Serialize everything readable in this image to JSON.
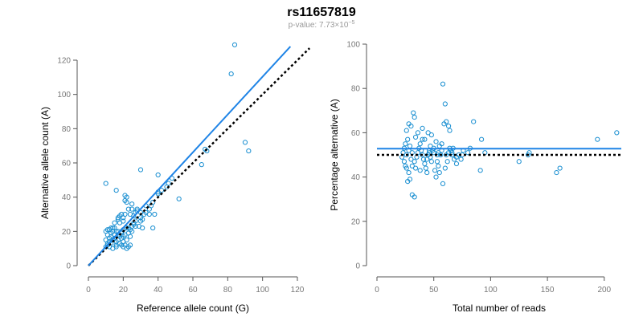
{
  "figure": {
    "title": "rs11657819",
    "subtitle_prefix": "p-value: 7.73×10",
    "subtitle_exponent": "−5"
  },
  "colors": {
    "point": "#1a8fd1",
    "fit_line": "#1f84e6",
    "reference_line": "#000000"
  },
  "chart_data": [
    {
      "type": "scatter",
      "title": "",
      "xlabel": "Reference allele count (G)",
      "ylabel": "Alternative allele count (A)",
      "xlim": [
        0,
        120
      ],
      "ylim": [
        0,
        120
      ],
      "xticks": [
        0,
        20,
        40,
        60,
        80,
        100,
        120
      ],
      "yticks": [
        0,
        20,
        40,
        60,
        80,
        100,
        120
      ],
      "points": [
        [
          10,
          48
        ],
        [
          16,
          44
        ],
        [
          30,
          56
        ],
        [
          40,
          53
        ],
        [
          48,
          51
        ],
        [
          52,
          39
        ],
        [
          37,
          37
        ],
        [
          37,
          22
        ],
        [
          28,
          32
        ],
        [
          33,
          35
        ],
        [
          36,
          35
        ],
        [
          40,
          42
        ],
        [
          42,
          44
        ],
        [
          45,
          46
        ],
        [
          46,
          48
        ],
        [
          65,
          59
        ],
        [
          67,
          68
        ],
        [
          68,
          67
        ],
        [
          82,
          112
        ],
        [
          84,
          129
        ],
        [
          90,
          72
        ],
        [
          92,
          67
        ],
        [
          38,
          30
        ],
        [
          30,
          26
        ],
        [
          31,
          22
        ],
        [
          24,
          30
        ],
        [
          25,
          33
        ],
        [
          25,
          36
        ],
        [
          27,
          31
        ],
        [
          27,
          23
        ],
        [
          25,
          20
        ],
        [
          21,
          41
        ],
        [
          21,
          38
        ],
        [
          22,
          40
        ],
        [
          22,
          37
        ],
        [
          23,
          33
        ],
        [
          20,
          26
        ],
        [
          18,
          25
        ],
        [
          17,
          27
        ],
        [
          17,
          28
        ],
        [
          18,
          29
        ],
        [
          19,
          30
        ],
        [
          20,
          28
        ],
        [
          21,
          30
        ],
        [
          15,
          22
        ],
        [
          16,
          20
        ],
        [
          15,
          18
        ],
        [
          13,
          17
        ],
        [
          12,
          16
        ],
        [
          11,
          18
        ],
        [
          10,
          20
        ],
        [
          11,
          21
        ],
        [
          13,
          22
        ],
        [
          14,
          20
        ],
        [
          10,
          15
        ],
        [
          12,
          14
        ],
        [
          11,
          12
        ],
        [
          13,
          13
        ],
        [
          14,
          15
        ],
        [
          15,
          16
        ],
        [
          16,
          14
        ],
        [
          16,
          12
        ],
        [
          17,
          15
        ],
        [
          18,
          17
        ],
        [
          17,
          18
        ],
        [
          19,
          19
        ],
        [
          19,
          20
        ],
        [
          20,
          21
        ],
        [
          22,
          22
        ],
        [
          23,
          22
        ],
        [
          21,
          18
        ],
        [
          20,
          14
        ],
        [
          18,
          13
        ],
        [
          19,
          12
        ],
        [
          21,
          12
        ],
        [
          20,
          11
        ],
        [
          19,
          16
        ],
        [
          22,
          15
        ],
        [
          23,
          19
        ],
        [
          24,
          21
        ],
        [
          25,
          23
        ],
        [
          26,
          25
        ],
        [
          29,
          23
        ],
        [
          30,
          28
        ],
        [
          32,
          30
        ],
        [
          33,
          31
        ],
        [
          35,
          33
        ],
        [
          26,
          29
        ],
        [
          28,
          33
        ],
        [
          23,
          11
        ],
        [
          22,
          10
        ],
        [
          24,
          12
        ],
        [
          14,
          10
        ],
        [
          12,
          11
        ],
        [
          26,
          24
        ],
        [
          27,
          26
        ],
        [
          30,
          31
        ],
        [
          31,
          27
        ],
        [
          35,
          30
        ],
        [
          40,
          43
        ],
        [
          14,
          22
        ],
        [
          15,
          25
        ],
        [
          17,
          20
        ],
        [
          13,
          19
        ],
        [
          12,
          21
        ],
        [
          11,
          13
        ],
        [
          10,
          11
        ],
        [
          16,
          11
        ],
        [
          20,
          17
        ],
        [
          24,
          17
        ]
      ],
      "fit_line": {
        "from": [
          0,
          0
        ],
        "to": [
          116,
          128
        ]
      },
      "reference_line": {
        "from": [
          0,
          0
        ],
        "to": [
          127,
          127
        ]
      }
    },
    {
      "type": "scatter",
      "title": "",
      "xlabel": "Total number of reads",
      "ylabel": "Percentage alternative (A)",
      "xlim": [
        0,
        215
      ],
      "ylim": [
        0,
        100
      ],
      "xticks": [
        0,
        50,
        100,
        150,
        200
      ],
      "yticks": [
        0,
        20,
        40,
        60,
        80,
        100
      ],
      "points": [
        [
          58,
          82
        ],
        [
          60,
          73
        ],
        [
          32,
          69
        ],
        [
          33,
          67
        ],
        [
          28,
          64
        ],
        [
          30,
          63
        ],
        [
          26,
          61
        ],
        [
          34,
          58
        ],
        [
          36,
          60
        ],
        [
          40,
          62
        ],
        [
          42,
          57
        ],
        [
          45,
          60
        ],
        [
          48,
          59
        ],
        [
          52,
          56
        ],
        [
          55,
          54
        ],
        [
          57,
          55
        ],
        [
          59,
          64
        ],
        [
          61,
          65
        ],
        [
          63,
          63
        ],
        [
          64,
          61
        ],
        [
          85,
          65
        ],
        [
          92,
          57
        ],
        [
          95,
          51
        ],
        [
          31,
          32
        ],
        [
          33,
          31
        ],
        [
          27,
          38
        ],
        [
          29,
          39
        ],
        [
          25,
          45
        ],
        [
          24,
          47
        ],
        [
          26,
          50
        ],
        [
          28,
          52
        ],
        [
          30,
          48
        ],
        [
          31,
          45
        ],
        [
          33,
          47
        ],
        [
          35,
          49
        ],
        [
          36,
          51
        ],
        [
          37,
          53
        ],
        [
          38,
          55
        ],
        [
          39,
          52
        ],
        [
          40,
          50
        ],
        [
          41,
          48
        ],
        [
          42,
          46
        ],
        [
          43,
          44
        ],
        [
          44,
          42
        ],
        [
          45,
          50
        ],
        [
          46,
          52
        ],
        [
          47,
          54
        ],
        [
          48,
          47
        ],
        [
          50,
          51
        ],
        [
          51,
          43
        ],
        [
          52,
          40
        ],
        [
          53,
          47
        ],
        [
          54,
          45
        ],
        [
          55,
          42
        ],
        [
          56,
          50
        ],
        [
          58,
          37
        ],
        [
          60,
          44
        ],
        [
          62,
          47
        ],
        [
          63,
          51
        ],
        [
          64,
          53
        ],
        [
          65,
          52
        ],
        [
          66,
          50
        ],
        [
          67,
          53
        ],
        [
          68,
          48
        ],
        [
          70,
          46
        ],
        [
          72,
          50
        ],
        [
          74,
          48
        ],
        [
          76,
          52
        ],
        [
          80,
          51
        ],
        [
          82,
          53
        ],
        [
          91,
          43
        ],
        [
          125,
          47
        ],
        [
          133,
          50
        ],
        [
          134,
          51
        ],
        [
          158,
          42
        ],
        [
          161,
          44
        ],
        [
          194,
          57
        ],
        [
          211,
          60
        ],
        [
          23,
          51
        ],
        [
          22,
          49
        ],
        [
          24,
          53
        ],
        [
          25,
          55
        ],
        [
          27,
          57
        ],
        [
          29,
          54
        ],
        [
          31,
          51
        ],
        [
          34,
          44
        ],
        [
          38,
          43
        ],
        [
          40,
          57
        ],
        [
          44,
          48
        ],
        [
          46,
          51
        ],
        [
          47,
          49
        ],
        [
          49,
          52
        ],
        [
          50,
          53
        ],
        [
          53,
          50
        ],
        [
          54,
          51
        ],
        [
          57,
          52
        ],
        [
          61,
          50
        ],
        [
          66,
          51
        ],
        [
          70,
          49
        ],
        [
          75,
          50
        ],
        [
          26,
          44
        ],
        [
          28,
          42
        ]
      ],
      "fit_line": {
        "from": [
          0,
          52.8
        ],
        "to": [
          215,
          52.8
        ]
      },
      "reference_line": {
        "from": [
          0,
          50
        ],
        "to": [
          215,
          50
        ]
      }
    }
  ]
}
